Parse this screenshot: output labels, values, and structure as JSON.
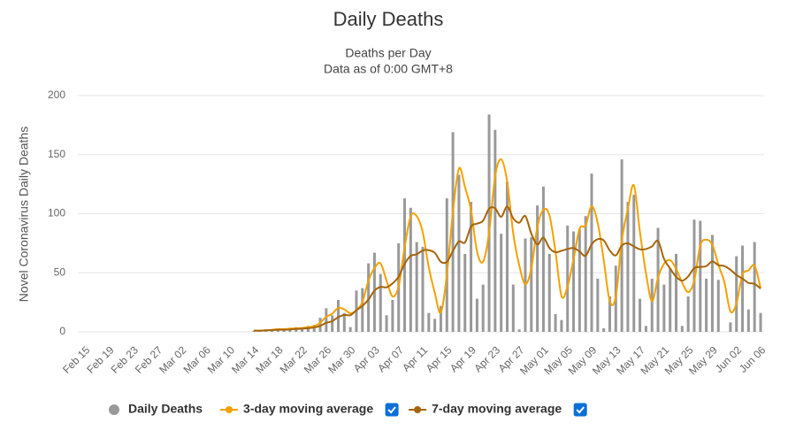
{
  "chart_data": {
    "type": "bar",
    "title": "Daily Deaths",
    "subtitle": [
      "Deaths per Day",
      "Data as of 0:00 GMT+8"
    ],
    "y_label": "Novel Coronavirus Daily Deaths",
    "categories": [
      "Feb 15",
      null,
      null,
      null,
      "Feb 19",
      null,
      null,
      null,
      "Feb 23",
      null,
      null,
      null,
      "Feb 27",
      null,
      null,
      null,
      "Mar 02",
      null,
      null,
      null,
      "Mar 06",
      null,
      null,
      null,
      "Mar 10",
      null,
      null,
      null,
      "Mar 14",
      null,
      null,
      null,
      "Mar 18",
      null,
      null,
      null,
      "Mar 22",
      null,
      null,
      null,
      "Mar 26",
      null,
      null,
      null,
      "Mar 30",
      null,
      null,
      null,
      "Apr 03",
      null,
      null,
      null,
      "Apr 07",
      null,
      null,
      null,
      "Apr 11",
      null,
      null,
      null,
      "Apr 15",
      null,
      null,
      null,
      "Apr 19",
      null,
      null,
      null,
      "Apr 23",
      null,
      null,
      null,
      "Apr 27",
      null,
      null,
      null,
      "May 01",
      null,
      null,
      null,
      "May 05",
      null,
      null,
      null,
      "May 09",
      null,
      null,
      null,
      "May 13",
      null,
      null,
      null,
      "May 17",
      null,
      null,
      null,
      "May 21",
      null,
      null,
      null,
      "May 25",
      null,
      null,
      null,
      "May 29",
      null,
      null,
      null,
      "Jun 02",
      null,
      null,
      null,
      "Jun 06"
    ],
    "series": [
      {
        "name": "Daily Deaths",
        "type": "bar",
        "color": "#999999",
        "values": [
          0,
          0,
          0,
          0,
          0,
          0,
          0,
          0,
          0,
          0,
          0,
          0,
          0,
          0,
          0,
          0,
          0,
          0,
          0,
          0,
          0,
          0,
          0,
          0,
          0,
          0,
          0,
          0,
          1,
          1,
          2,
          2,
          3,
          2,
          3,
          4,
          3,
          5,
          6,
          12,
          20,
          14,
          27,
          16,
          4,
          35,
          37,
          58,
          67,
          49,
          14,
          27,
          75,
          113,
          105,
          76,
          72,
          16,
          11,
          22,
          113,
          169,
          133,
          66,
          110,
          28,
          40,
          184,
          171,
          83,
          127,
          40,
          2,
          79,
          80,
          107,
          123,
          66,
          15,
          10,
          90,
          85,
          87,
          98,
          134,
          45,
          3,
          30,
          56,
          146,
          110,
          116,
          28,
          5,
          45,
          88,
          40,
          54,
          66,
          5,
          30,
          95,
          94,
          45,
          82,
          44,
          0,
          8,
          64,
          73,
          19,
          76,
          16
        ]
      },
      {
        "name": "3-day moving average",
        "type": "line",
        "color": "#f5a100",
        "checked": true,
        "values": [
          null,
          null,
          null,
          null,
          null,
          null,
          null,
          null,
          null,
          null,
          null,
          null,
          null,
          null,
          null,
          null,
          null,
          null,
          null,
          null,
          null,
          null,
          null,
          null,
          null,
          null,
          null,
          null,
          1,
          1,
          1.3,
          1.7,
          2.3,
          2.3,
          2.7,
          3,
          3.3,
          4,
          4.7,
          7.7,
          12.7,
          15.3,
          20.3,
          19,
          15.7,
          18.3,
          25.3,
          43.3,
          54,
          58,
          43.3,
          30,
          38.7,
          71.7,
          97.7,
          98,
          84.3,
          54.7,
          33,
          16.3,
          48.7,
          101.3,
          138.3,
          122.7,
          103,
          68,
          59.3,
          84,
          131.7,
          146,
          127,
          83.3,
          56.3,
          40.3,
          53.7,
          88.7,
          103.3,
          98.7,
          68,
          30.3,
          38.3,
          61.7,
          87.3,
          90,
          106.3,
          92.3,
          60.7,
          26,
          29.7,
          77.3,
          104,
          124,
          84.7,
          49.7,
          26,
          46,
          57.7,
          60.7,
          53.3,
          41.7,
          33.7,
          43.3,
          73,
          78,
          73.7,
          57,
          42,
          17.3,
          24,
          48.3,
          52,
          56,
          37
        ]
      },
      {
        "name": "7-day moving average",
        "type": "line",
        "color": "#a5650a",
        "checked": true,
        "values": [
          null,
          null,
          null,
          null,
          null,
          null,
          null,
          null,
          null,
          null,
          null,
          null,
          null,
          null,
          null,
          null,
          null,
          null,
          null,
          null,
          null,
          null,
          null,
          null,
          null,
          null,
          null,
          null,
          1,
          1,
          1.3,
          1.5,
          1.8,
          1.8,
          2,
          2.4,
          2.7,
          3.1,
          3.7,
          5,
          7.6,
          9.1,
          12.4,
          14.3,
          14.1,
          18.3,
          21.9,
          27.3,
          34.9,
          38,
          37.7,
          41,
          46.7,
          57.6,
          64.3,
          65.6,
          68.9,
          69.1,
          66.9,
          59.3,
          59.3,
          68.4,
          76.6,
          75.7,
          89.1,
          91.6,
          94.1,
          104.3,
          104.6,
          97.4,
          106.1,
          96.1,
          92.4,
          98,
          83.1,
          74,
          79.7,
          71,
          67.4,
          68.6,
          70.1,
          70.9,
          68,
          64.4,
          74.1,
          78.4,
          77.4,
          68.9,
          64.7,
          73.1,
          74.9,
          72.3,
          69.9,
          70.1,
          72.3,
          76.9,
          61.7,
          53.7,
          46.6,
          43.3,
          46.9,
          54,
          54.9,
          55.6,
          59.6,
          56.4,
          55.7,
          52.6,
          48.1,
          45.1,
          41.4,
          40.6,
          36.6
        ]
      }
    ],
    "ylim": [
      0,
      200
    ],
    "yticks": [
      0,
      50,
      100,
      150,
      200
    ],
    "grid": true
  }
}
